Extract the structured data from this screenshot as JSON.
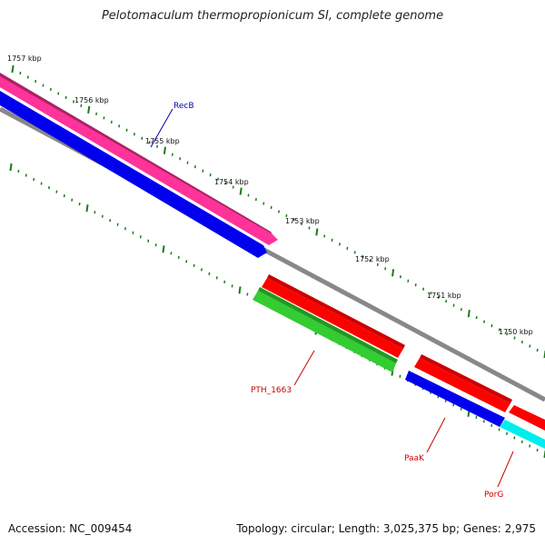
{
  "title": "Pelotomaculum thermopropionicum SI, complete genome",
  "footer": {
    "accession": "Accession: NC_009454",
    "summary": "Topology: circular; Length: 3,025,375 bp; Genes: 2,975"
  },
  "colors": {
    "backbone": "#888888",
    "tick": "#1a7a1a",
    "pink": "#ff3399",
    "magenta_edge": "#aa2266",
    "blue": "#0000ee",
    "red": "#ff0000",
    "green": "#33cc33",
    "cyan": "#00eeee",
    "blue_label": "#0000aa",
    "red_label": "#cc0000"
  },
  "kbp_labels": [
    "1757 kbp",
    "1756 kbp",
    "1755 kbp",
    "1754 kbp",
    "1753 kbp",
    "1752 kbp",
    "1751 kbp",
    "1750 kbp"
  ],
  "genes": [
    {
      "name": "RecB",
      "label_color": "blue_label"
    },
    {
      "name": "PTH_1663",
      "label_color": "red_label"
    },
    {
      "name": "PaaK",
      "label_color": "red_label"
    },
    {
      "name": "PorG",
      "label_color": "red_label"
    }
  ]
}
